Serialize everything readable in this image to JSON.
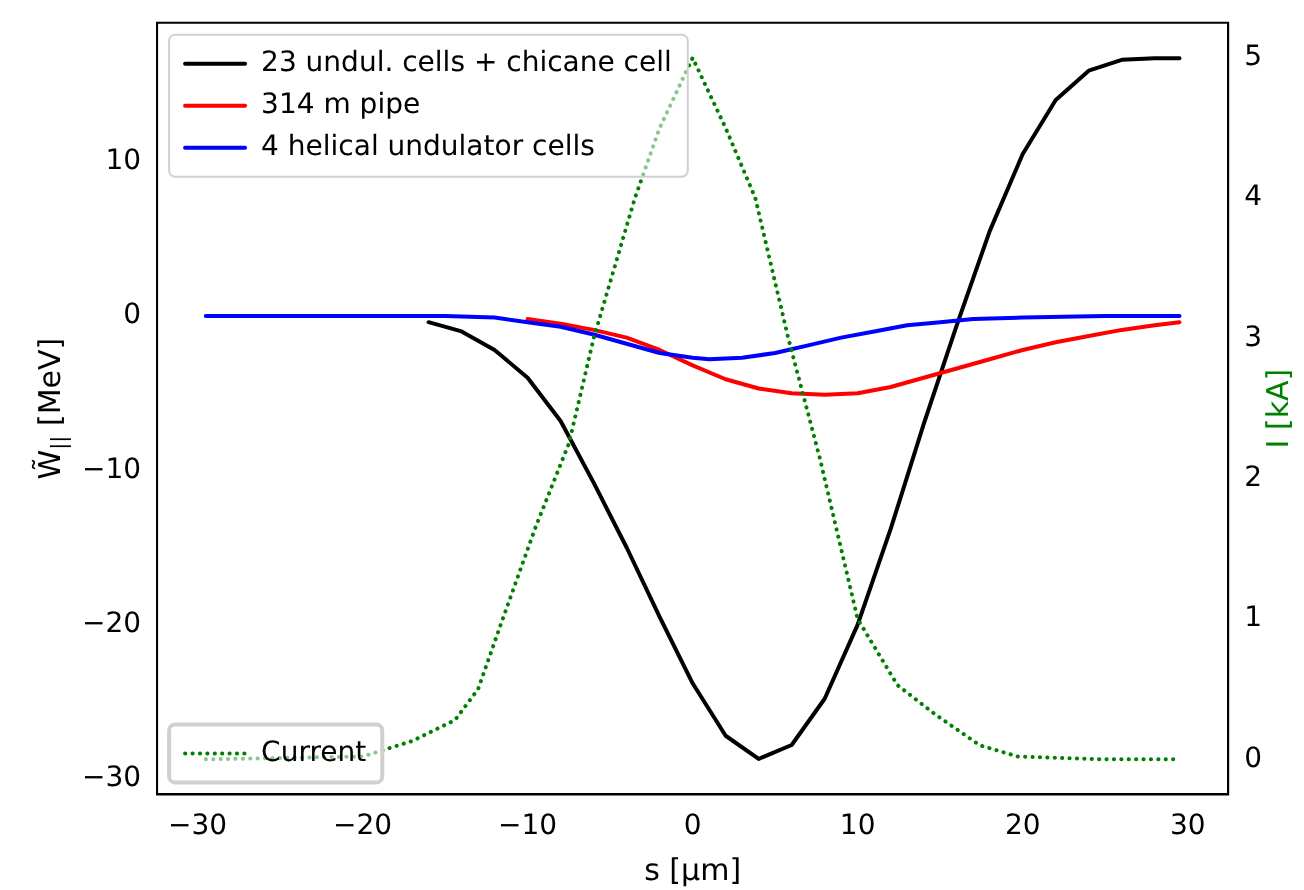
{
  "chart_data": {
    "type": "line",
    "xlabel": "s [µm]",
    "ylabel": "W̃$_{||}$ [MeV]",
    "y2label": "I [kA]",
    "xlim": [
      -32.45,
      32.45
    ],
    "xticks": [
      -30,
      -20,
      -10,
      0,
      10,
      20,
      30
    ],
    "ylim": [
      -31,
      19
    ],
    "yticks": [
      -30,
      -20,
      -10,
      0,
      10
    ],
    "y2lim": [
      -0.25,
      5.25
    ],
    "y2ticks": [
      0,
      1,
      2,
      3,
      4,
      5
    ],
    "grid": false,
    "legend": "top left",
    "marker": "none",
    "series": [
      {
        "name": "23 undul. cells + chicane cell",
        "color": "#000000",
        "x": [
          -16,
          -14,
          -12,
          -10,
          -8,
          -6,
          -4,
          -2,
          0,
          2,
          4,
          6,
          8,
          10,
          12,
          14,
          16,
          18,
          20,
          22,
          24,
          26,
          28,
          29.5
        ],
        "values": [
          -0.4,
          -1,
          -2.2,
          -4,
          -6.8,
          -10.8,
          -15,
          -19.5,
          -23.8,
          -27.2,
          -28.7,
          -27.8,
          -24.8,
          -20,
          -13.8,
          -7,
          -0.6,
          5.5,
          10.5,
          14,
          15.9,
          16.6,
          16.7,
          16.7
        ]
      },
      {
        "name": "314 m pipe",
        "color": "#ff0000",
        "x": [
          -10,
          -8,
          -6,
          -4,
          -2,
          0,
          2,
          4,
          6,
          8,
          10,
          12,
          14,
          16,
          18,
          20,
          22,
          24,
          26,
          28,
          29.5
        ],
        "values": [
          -0.2,
          -0.5,
          -0.9,
          -1.4,
          -2.2,
          -3.2,
          -4.1,
          -4.7,
          -5.0,
          -5.1,
          -5.0,
          -4.6,
          -4.0,
          -3.4,
          -2.8,
          -2.2,
          -1.7,
          -1.3,
          -0.9,
          -0.6,
          -0.4
        ]
      },
      {
        "name": "4 helical undulator cells",
        "color": "#0000ff",
        "x": [
          -29.5,
          -15,
          -12,
          -10,
          -8,
          -6,
          -4,
          -2,
          0,
          1,
          3,
          5,
          7,
          9,
          11,
          13,
          15,
          17,
          20,
          25,
          29.5
        ],
        "values": [
          0,
          0,
          -0.1,
          -0.4,
          -0.7,
          -1.2,
          -1.8,
          -2.4,
          -2.7,
          -2.8,
          -2.7,
          -2.4,
          -1.9,
          -1.4,
          -1.0,
          -0.6,
          -0.4,
          -0.2,
          -0.1,
          0,
          0
        ]
      },
      {
        "name": "Current",
        "color": "#008000",
        "axis": "y2",
        "line_style": "dotted",
        "x": [
          -29.5,
          -20,
          -17,
          -14.4,
          -13,
          -11.6,
          -9.5,
          -7.5,
          -6,
          -3.5,
          -2,
          0,
          2,
          3.8,
          5.8,
          7.7,
          10,
          12.4,
          14.7,
          17.4,
          19.7,
          25,
          29.5
        ],
        "values": [
          0,
          0.02,
          0.13,
          0.28,
          0.5,
          0.97,
          1.66,
          2.25,
          3.0,
          4.0,
          4.5,
          5.0,
          4.5,
          4.0,
          3.0,
          2.15,
          1.0,
          0.53,
          0.32,
          0.1,
          0.02,
          0,
          0
        ]
      }
    ]
  }
}
